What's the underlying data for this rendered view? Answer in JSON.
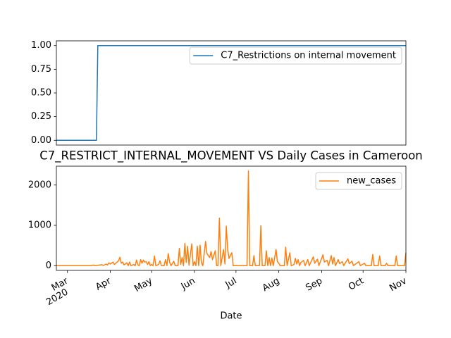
{
  "chart_data": [
    {
      "type": "line",
      "series": [
        {
          "name": "C7_Restrictions on internal movement",
          "color": "#1f77b4",
          "x": [
            "2020-02-22",
            "2020-03-22",
            "2020-03-23",
            "2020-11-01"
          ],
          "values": [
            0,
            0,
            1,
            1
          ]
        }
      ],
      "xlim": [
        "2020-02-22",
        "2020-11-01"
      ],
      "ylim": [
        -0.05,
        1.05
      ],
      "yticks": [
        {
          "value": 0,
          "label": "0.00"
        },
        {
          "value": 0.25,
          "label": "0.25"
        },
        {
          "value": 0.5,
          "label": "0.50"
        },
        {
          "value": 0.75,
          "label": "0.75"
        },
        {
          "value": 1,
          "label": "1.00"
        }
      ],
      "legend": "upper right"
    },
    {
      "type": "line",
      "title": "C7_RESTRICT_INTERNAL_MOVEMENT VS Daily Cases in Cameroon",
      "x_label": "Date",
      "x_year": "2020",
      "series": [
        {
          "name": "new_cases",
          "color": "#ff7f0e",
          "x": [
            "2020-02-22",
            "2020-03-18",
            "2020-03-20",
            "2020-03-21",
            "2020-03-26",
            "2020-03-27",
            "2020-03-29",
            "2020-03-30",
            "2020-03-31",
            "2020-04-01",
            "2020-04-03",
            "2020-04-04",
            "2020-04-07",
            "2020-04-08",
            "2020-04-09",
            "2020-04-10",
            "2020-04-11",
            "2020-04-13",
            "2020-04-14",
            "2020-04-15",
            "2020-04-16",
            "2020-04-18",
            "2020-04-19",
            "2020-04-20",
            "2020-04-21",
            "2020-04-22",
            "2020-04-23",
            "2020-04-24",
            "2020-04-25",
            "2020-04-26",
            "2020-04-27",
            "2020-04-28",
            "2020-04-29",
            "2020-04-30",
            "2020-05-01",
            "2020-05-02",
            "2020-05-03",
            "2020-05-04",
            "2020-05-06",
            "2020-05-07",
            "2020-05-08",
            "2020-05-10",
            "2020-05-11",
            "2020-05-12",
            "2020-05-13",
            "2020-05-14",
            "2020-05-15",
            "2020-05-17",
            "2020-05-18",
            "2020-05-20",
            "2020-05-21",
            "2020-05-22",
            "2020-05-23",
            "2020-05-24",
            "2020-05-25",
            "2020-05-26",
            "2020-05-27",
            "2020-05-28",
            "2020-05-30",
            "2020-05-31",
            "2020-06-01",
            "2020-06-02",
            "2020-06-03",
            "2020-06-04",
            "2020-06-05",
            "2020-06-06",
            "2020-06-07",
            "2020-06-09",
            "2020-06-10",
            "2020-06-11",
            "2020-06-12",
            "2020-06-13",
            "2020-06-14",
            "2020-06-16",
            "2020-06-17",
            "2020-06-18",
            "2020-06-19",
            "2020-06-20",
            "2020-06-22",
            "2020-06-23",
            "2020-06-24",
            "2020-06-25",
            "2020-06-26",
            "2020-06-27",
            "2020-06-28",
            "2020-06-29",
            "2020-07-09",
            "2020-07-10",
            "2020-07-11",
            "2020-07-13",
            "2020-07-14",
            "2020-07-15",
            "2020-07-18",
            "2020-07-19",
            "2020-07-20",
            "2020-07-22",
            "2020-07-23",
            "2020-07-24",
            "2020-07-25",
            "2020-07-26",
            "2020-07-27",
            "2020-07-28",
            "2020-07-30",
            "2020-07-31",
            "2020-08-01",
            "2020-08-02",
            "2020-08-05",
            "2020-08-06",
            "2020-08-07",
            "2020-08-09",
            "2020-08-10",
            "2020-08-12",
            "2020-08-13",
            "2020-08-14",
            "2020-08-15",
            "2020-08-16",
            "2020-08-17",
            "2020-08-19",
            "2020-08-20",
            "2020-08-22",
            "2020-08-23",
            "2020-08-26",
            "2020-08-27",
            "2020-08-29",
            "2020-08-30",
            "2020-09-02",
            "2020-09-03",
            "2020-09-05",
            "2020-09-06",
            "2020-09-08",
            "2020-09-09",
            "2020-09-10",
            "2020-09-11",
            "2020-09-13",
            "2020-09-14",
            "2020-09-16",
            "2020-09-17",
            "2020-09-20",
            "2020-09-21",
            "2020-09-23",
            "2020-09-24",
            "2020-09-28",
            "2020-09-29",
            "2020-10-02",
            "2020-10-03",
            "2020-10-07",
            "2020-10-08",
            "2020-10-09",
            "2020-10-12",
            "2020-10-13",
            "2020-10-14",
            "2020-10-17",
            "2020-10-18",
            "2020-10-19",
            "2020-10-24",
            "2020-10-25",
            "2020-10-26",
            "2020-10-31",
            "2020-11-01"
          ],
          "values": [
            0,
            0,
            15,
            0,
            25,
            5,
            40,
            15,
            70,
            40,
            90,
            30,
            120,
            210,
            60,
            90,
            20,
            70,
            0,
            90,
            0,
            30,
            0,
            140,
            20,
            0,
            150,
            60,
            140,
            90,
            100,
            30,
            100,
            0,
            30,
            0,
            240,
            0,
            30,
            120,
            0,
            0,
            150,
            0,
            300,
            80,
            0,
            110,
            0,
            0,
            430,
            30,
            200,
            0,
            550,
            80,
            480,
            10,
            540,
            0,
            100,
            0,
            480,
            0,
            510,
            80,
            0,
            600,
            300,
            250,
            200,
            350,
            150,
            370,
            0,
            0,
            1180,
            0,
            400,
            40,
            980,
            400,
            180,
            260,
            320,
            0,
            0,
            2350,
            0,
            0,
            250,
            0,
            0,
            990,
            0,
            0,
            370,
            0,
            200,
            0,
            190,
            0,
            400,
            100,
            60,
            0,
            0,
            460,
            0,
            320,
            0,
            30,
            180,
            40,
            150,
            0,
            80,
            130,
            0,
            150,
            0,
            220,
            60,
            160,
            0,
            270,
            90,
            130,
            0,
            250,
            40,
            200,
            0,
            150,
            50,
            100,
            0,
            170,
            50,
            110,
            0,
            100,
            0,
            60,
            0,
            0,
            280,
            0,
            0,
            240,
            0,
            0,
            60,
            0,
            0,
            240,
            0,
            0,
            320
          ]
        }
      ],
      "xlim": [
        "2020-02-22",
        "2020-11-01"
      ],
      "xticks": [
        {
          "value": "2020-03-01",
          "label": "Mar"
        },
        {
          "value": "2020-04-01",
          "label": "Apr"
        },
        {
          "value": "2020-05-01",
          "label": "May"
        },
        {
          "value": "2020-06-01",
          "label": "Jun"
        },
        {
          "value": "2020-07-01",
          "label": "Jul"
        },
        {
          "value": "2020-08-01",
          "label": "Aug"
        },
        {
          "value": "2020-09-01",
          "label": "Sep"
        },
        {
          "value": "2020-10-01",
          "label": "Oct"
        },
        {
          "value": "2020-11-01",
          "label": "Nov"
        }
      ],
      "ylim": [
        -117.5,
        2467.5
      ],
      "yticks": [
        0,
        1000,
        2000
      ],
      "legend": "upper right"
    }
  ]
}
